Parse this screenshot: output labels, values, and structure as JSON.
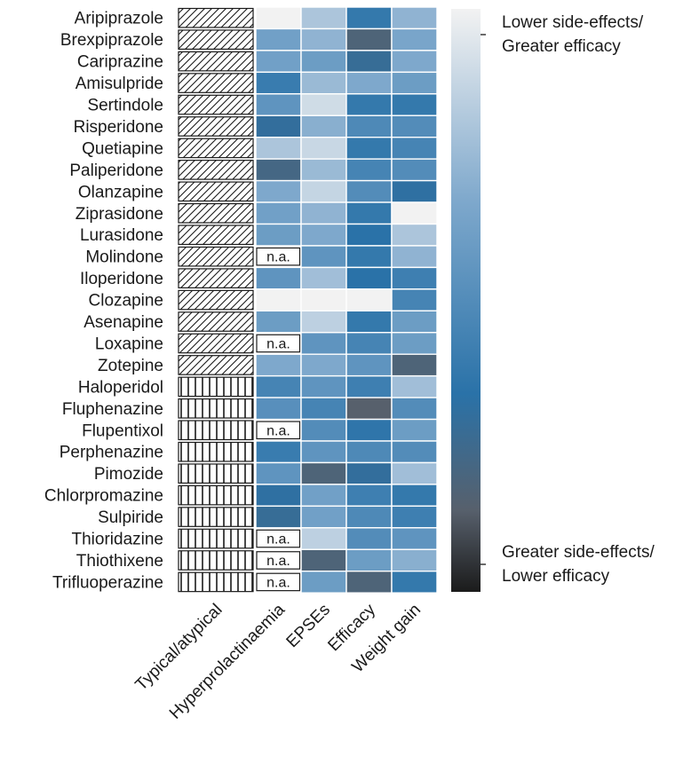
{
  "chart_data": {
    "type": "heatmap",
    "title": "",
    "drugs": [
      "Aripiprazole",
      "Brexpiprazole",
      "Cariprazine",
      "Amisulpride",
      "Sertindole",
      "Risperidone",
      "Quetiapine",
      "Paliperidone",
      "Olanzapine",
      "Ziprasidone",
      "Lurasidone",
      "Molindone",
      "Iloperidone",
      "Clozapine",
      "Asenapine",
      "Loxapine",
      "Zotepine",
      "Haloperidol",
      "Fluphenazine",
      "Flupentixol",
      "Perphenazine",
      "Pimozide",
      "Chlorpromazine",
      "Sulpiride",
      "Thioridazine",
      "Thiothixene",
      "Trifluoperazine"
    ],
    "class_column": {
      "label": "Typical/atypical",
      "values": [
        "atypical",
        "atypical",
        "atypical",
        "atypical",
        "atypical",
        "atypical",
        "atypical",
        "atypical",
        "atypical",
        "atypical",
        "atypical",
        "atypical",
        "atypical",
        "atypical",
        "atypical",
        "atypical",
        "atypical",
        "typical",
        "typical",
        "typical",
        "typical",
        "typical",
        "typical",
        "typical",
        "typical",
        "typical",
        "typical"
      ]
    },
    "columns": [
      "Hyperprolactinaemia",
      "EPSEs",
      "Efficacy",
      "Weight gain"
    ],
    "missing_label": "n.a.",
    "scale_note": "0 = lower side-effects / greater efficacy (light); 1 = greater side-effects / lower efficacy (dark)",
    "values": [
      [
        0.0,
        0.2,
        0.62,
        0.28
      ],
      [
        0.38,
        0.28,
        0.82,
        0.35
      ],
      [
        0.38,
        0.4,
        0.72,
        0.33
      ],
      [
        0.6,
        0.25,
        0.33,
        0.4
      ],
      [
        0.45,
        0.1,
        0.62,
        0.62
      ],
      [
        0.7,
        0.3,
        0.52,
        0.5
      ],
      [
        0.2,
        0.12,
        0.62,
        0.55
      ],
      [
        0.78,
        0.25,
        0.55,
        0.5
      ],
      [
        0.33,
        0.13,
        0.5,
        0.68
      ],
      [
        0.38,
        0.28,
        0.62,
        0.0
      ],
      [
        0.4,
        0.33,
        0.66,
        0.2
      ],
      [
        null,
        0.45,
        0.62,
        0.28
      ],
      [
        0.45,
        0.23,
        0.66,
        0.58
      ],
      [
        0.0,
        0.0,
        0.0,
        0.55
      ],
      [
        0.4,
        0.15,
        0.62,
        0.4
      ],
      [
        null,
        0.45,
        0.55,
        0.4
      ],
      [
        0.33,
        0.33,
        0.45,
        0.82
      ],
      [
        0.55,
        0.45,
        0.58,
        0.23
      ],
      [
        0.48,
        0.55,
        0.86,
        0.5
      ],
      [
        null,
        0.5,
        0.64,
        0.4
      ],
      [
        0.6,
        0.45,
        0.52,
        0.5
      ],
      [
        0.45,
        0.82,
        0.7,
        0.23
      ],
      [
        0.68,
        0.38,
        0.58,
        0.62
      ],
      [
        0.72,
        0.38,
        0.52,
        0.58
      ],
      [
        null,
        0.15,
        0.5,
        0.45
      ],
      [
        null,
        0.82,
        0.4,
        0.3
      ],
      [
        null,
        0.4,
        0.82,
        0.62
      ]
    ],
    "colorbar": {
      "top_label_line1": "Lower side-effects/",
      "top_label_line2": "Greater efficacy",
      "bottom_label_line1": "Greater side-effects/",
      "bottom_label_line2": "Lower efficacy",
      "colors": [
        "#f2f2f2",
        "#7ea8cc",
        "#2a72a8",
        "#57606c",
        "#1b1b1b"
      ]
    }
  }
}
